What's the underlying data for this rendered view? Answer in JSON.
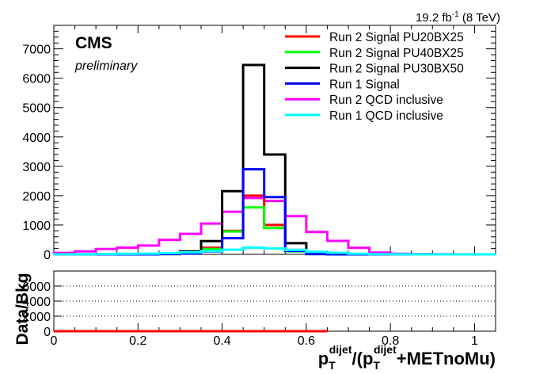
{
  "lumi_label": "19.2 fb",
  "lumi_exp": "-1",
  "lumi_energy": " (8 TeV)",
  "cms_label": "CMS",
  "prelim_label": "preliminary",
  "ratio_ylabel": "Data/Bkg",
  "xlabel": {
    "p1": "p",
    "sub1": "T",
    "sup1": "dijet",
    "mid": "/(p",
    "sub2": "T",
    "sup2": "dijet",
    "end": "+METnoMu)"
  },
  "chart_data": [
    {
      "type": "histogram",
      "bin_width": 0.05,
      "bins": [
        0,
        0.05,
        0.1,
        0.15,
        0.2,
        0.25,
        0.3,
        0.35,
        0.4,
        0.45,
        0.5,
        0.55,
        0.6,
        0.65,
        0.7,
        0.75,
        0.8,
        0.85,
        0.9,
        0.95,
        1.0
      ],
      "xlim": [
        0,
        1.05
      ],
      "ylim": [
        0,
        7800
      ],
      "yticks": [
        0,
        1000,
        2000,
        3000,
        4000,
        5000,
        6000,
        7000
      ],
      "xticks": [
        0,
        0.2,
        0.4,
        0.6,
        0.8,
        1
      ],
      "xtick_labels": [
        "0",
        "0.2",
        "0.4",
        "0.6",
        "0.8",
        "1"
      ],
      "legend_position": "top-right",
      "series": [
        {
          "name": "Run 2 QCD inclusive",
          "color": "#ff00ff",
          "values": [
            50,
            100,
            180,
            230,
            300,
            490,
            700,
            1050,
            1450,
            1920,
            1820,
            1300,
            760,
            460,
            220,
            60,
            20,
            10,
            5,
            2,
            1
          ]
        },
        {
          "name": "Run 2 Signal PU20BX25",
          "color": "#ff0000",
          "values": [
            0,
            0,
            0,
            0,
            0,
            10,
            40,
            220,
            800,
            2000,
            1000,
            150,
            10,
            0,
            0,
            0,
            0,
            0,
            0,
            0,
            0
          ]
        },
        {
          "name": "Run 2 Signal PU40BX25",
          "color": "#00ff00",
          "values": [
            0,
            0,
            0,
            0,
            0,
            10,
            40,
            180,
            780,
            1600,
            900,
            100,
            10,
            0,
            0,
            0,
            0,
            0,
            0,
            0,
            0
          ]
        },
        {
          "name": "Run 2 Signal PU30BX50",
          "color": "#000000",
          "values": [
            0,
            0,
            0,
            0,
            5,
            20,
            100,
            450,
            2150,
            6450,
            3400,
            380,
            40,
            0,
            0,
            0,
            0,
            0,
            0,
            0,
            0
          ]
        },
        {
          "name": "Run 1 Signal",
          "color": "#0000ff",
          "values": [
            0,
            0,
            0,
            0,
            0,
            10,
            30,
            100,
            550,
            2900,
            1950,
            120,
            10,
            0,
            0,
            0,
            0,
            0,
            0,
            0,
            0
          ]
        },
        {
          "name": "Run 1 QCD inclusive",
          "color": "#00ffff",
          "values": [
            2,
            4,
            10,
            15,
            25,
            40,
            70,
            110,
            160,
            230,
            200,
            150,
            90,
            50,
            20,
            8,
            3,
            1,
            0,
            0,
            0
          ]
        }
      ],
      "legend_order": [
        "Run 2 Signal PU20BX25",
        "Run 2 Signal PU40BX25",
        "Run 2 Signal PU30BX50",
        "Run 1 Signal",
        "Run 2 QCD inclusive",
        "Run 1 QCD inclusive"
      ]
    },
    {
      "type": "line",
      "ylabel": "Data/Bkg",
      "xlim": [
        0,
        1.05
      ],
      "ylim": [
        0,
        8000
      ],
      "yticks": [
        0,
        2000,
        4000,
        6000
      ],
      "grid": "horizontal-dotted",
      "series": [
        {
          "name": "",
          "color": "#ff0000",
          "x": [
            0,
            0.65
          ],
          "y": [
            0,
            0
          ]
        }
      ]
    }
  ]
}
